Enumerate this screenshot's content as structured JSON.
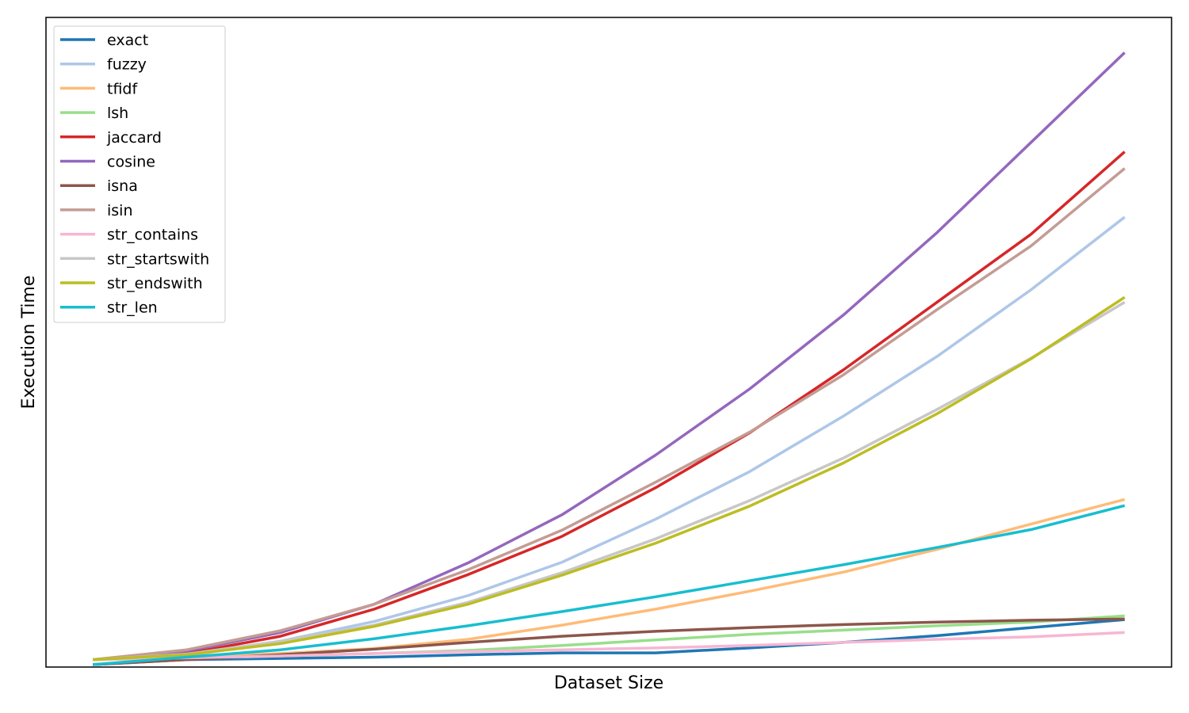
{
  "chart_data": {
    "type": "line",
    "title": "",
    "xlabel": "Dataset Size",
    "ylabel": "Execution Time",
    "xticks_shown": false,
    "yticks_shown": false,
    "grid": false,
    "legend_position": "top-left",
    "xlim": [
      -0.5,
      11.5
    ],
    "ylim": [
      -0.004,
      1.05
    ],
    "x": [
      0,
      1,
      2,
      3,
      4,
      5,
      6,
      7,
      8,
      9,
      10,
      11
    ],
    "series": [
      {
        "name": "exact",
        "color": "#1f77b4",
        "values": [
          0.0,
          0.008,
          0.01,
          0.012,
          0.016,
          0.019,
          0.019,
          0.027,
          0.036,
          0.047,
          0.06,
          0.073
        ]
      },
      {
        "name": "fuzzy",
        "color": "#aec7e8",
        "values": [
          0.008,
          0.014,
          0.038,
          0.07,
          0.112,
          0.166,
          0.236,
          0.313,
          0.403,
          0.5,
          0.608,
          0.726
        ]
      },
      {
        "name": "tfidf",
        "color": "#ffbb78",
        "values": [
          0.008,
          0.012,
          0.018,
          0.026,
          0.041,
          0.064,
          0.09,
          0.119,
          0.15,
          0.187,
          0.228,
          0.268
        ]
      },
      {
        "name": "lsh",
        "color": "#98df8a",
        "values": [
          0.008,
          0.01,
          0.014,
          0.018,
          0.023,
          0.031,
          0.04,
          0.049,
          0.056,
          0.063,
          0.069,
          0.079
        ]
      },
      {
        "name": "jaccard",
        "color": "#d62728",
        "values": [
          0.008,
          0.018,
          0.046,
          0.09,
          0.146,
          0.208,
          0.287,
          0.376,
          0.478,
          0.588,
          0.698,
          0.832
        ]
      },
      {
        "name": "cosine",
        "color": "#9467bd",
        "values": [
          0.008,
          0.022,
          0.052,
          0.098,
          0.165,
          0.243,
          0.34,
          0.447,
          0.567,
          0.701,
          0.847,
          0.993
        ]
      },
      {
        "name": "isna",
        "color": "#8c564b",
        "values": [
          0.0,
          0.008,
          0.016,
          0.025,
          0.036,
          0.046,
          0.054,
          0.06,
          0.065,
          0.069,
          0.072,
          0.074
        ]
      },
      {
        "name": "isin",
        "color": "#c49c94",
        "values": [
          0.008,
          0.024,
          0.055,
          0.098,
          0.154,
          0.218,
          0.296,
          0.377,
          0.47,
          0.576,
          0.679,
          0.805
        ]
      },
      {
        "name": "str_contains",
        "color": "#f7b6d2",
        "values": [
          0.008,
          0.011,
          0.014,
          0.018,
          0.021,
          0.024,
          0.027,
          0.031,
          0.036,
          0.041,
          0.045,
          0.052
        ]
      },
      {
        "name": "str_startswith",
        "color": "#c7c7c7",
        "values": [
          0.008,
          0.017,
          0.038,
          0.064,
          0.101,
          0.149,
          0.204,
          0.266,
          0.335,
          0.414,
          0.497,
          0.588
        ]
      },
      {
        "name": "str_endswith",
        "color": "#bcbd22",
        "values": [
          0.008,
          0.016,
          0.034,
          0.062,
          0.098,
          0.145,
          0.197,
          0.257,
          0.327,
          0.407,
          0.496,
          0.596
        ]
      },
      {
        "name": "str_len",
        "color": "#17becf",
        "values": [
          0.0,
          0.012,
          0.024,
          0.042,
          0.063,
          0.086,
          0.11,
          0.136,
          0.162,
          0.19,
          0.219,
          0.258
        ]
      }
    ]
  }
}
